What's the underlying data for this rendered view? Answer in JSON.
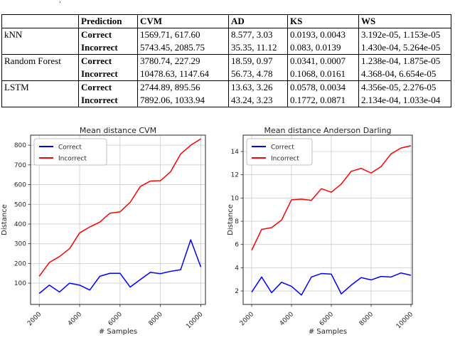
{
  "stray_mark": ",",
  "chart_data": [
    {
      "type": "table",
      "headers": [
        "",
        "Prediction",
        "CVM",
        "AD",
        "KS",
        "WS"
      ],
      "groups": [
        {
          "model": "kNN",
          "rows": [
            {
              "prediction": "Correct",
              "cvm": "1569.71, 617.60",
              "ad": "8.577, 3.03",
              "ks": "0.0193, 0.0043",
              "ws": "3.192e-05, 1.153e-05"
            },
            {
              "prediction": "Incorrect",
              "cvm": "5743.45, 2085.75",
              "ad": "35.35, 11.12",
              "ks": "0.083, 0.0139",
              "ws": "1.430e-04, 5.264e-05"
            }
          ]
        },
        {
          "model": "Random Forest",
          "rows": [
            {
              "prediction": "Correct",
              "cvm": "3780.74, 227.29",
              "ad": "18.59, 0.97",
              "ks": "0.0341, 0.0007",
              "ws": "1.238e-04, 1.875e-05"
            },
            {
              "prediction": "Incorrect",
              "cvm": "10478.63, 1147.64",
              "ad": "56.73, 4.78",
              "ks": "0.1068, 0.0161",
              "ws": "4.368-04, 6.654e-05"
            }
          ]
        },
        {
          "model": "LSTM",
          "rows": [
            {
              "prediction": "Correct",
              "cvm": "2744.89, 895.56",
              "ad": "13.63, 3.26",
              "ks": "0.0578, 0.0034",
              "ws": "4.356e-05, 2.276-05"
            },
            {
              "prediction": "Incorrect",
              "cvm": "7892.06, 1033.94",
              "ad": "43.24, 3.23",
              "ks": "0.1772, 0.0871",
              "ws": "2.134e-04, 1.033e-04"
            }
          ]
        }
      ]
    },
    {
      "type": "line",
      "title": "Mean distance CVM",
      "xlabel": "# Samples",
      "ylabel": "Distance",
      "x": [
        2000,
        2500,
        3000,
        3500,
        4000,
        4500,
        5000,
        5500,
        6000,
        6500,
        7000,
        7500,
        8000,
        8500,
        9000,
        9500,
        10000
      ],
      "series": [
        {
          "name": "Correct",
          "color": "#0000ff",
          "values": [
            48,
            90,
            55,
            100,
            90,
            65,
            135,
            150,
            150,
            80,
            118,
            155,
            148,
            160,
            168,
            320,
            182
          ]
        },
        {
          "name": "Incorrect",
          "color": "#ff0000",
          "values": [
            135,
            205,
            235,
            275,
            355,
            385,
            410,
            455,
            462,
            510,
            590,
            618,
            620,
            665,
            755,
            800,
            832
          ]
        }
      ],
      "xticks": [
        2000,
        4000,
        6000,
        8000,
        10000
      ],
      "yticks": [
        100,
        200,
        300,
        400,
        500,
        600,
        700,
        800
      ],
      "xlim": [
        1570,
        10230
      ],
      "ylim": [
        -8,
        851
      ],
      "grid": true,
      "legend_position": "upper left"
    },
    {
      "type": "line",
      "title": "Mean distance Anderson Darling",
      "xlabel": "# Samples",
      "ylabel": "Distance",
      "x": [
        2000,
        2500,
        3000,
        3500,
        4000,
        4500,
        5000,
        5500,
        6000,
        6500,
        7000,
        7500,
        8000,
        8500,
        9000,
        9500,
        10000
      ],
      "series": [
        {
          "name": "Correct",
          "color": "#0000ff",
          "values": [
            1.9,
            3.2,
            1.85,
            2.75,
            2.4,
            1.65,
            3.2,
            3.5,
            3.45,
            1.75,
            2.5,
            3.15,
            2.95,
            3.25,
            3.2,
            3.55,
            3.35
          ]
        },
        {
          "name": "Incorrect",
          "color": "#ff0000",
          "values": [
            5.5,
            7.3,
            7.45,
            8.1,
            9.85,
            9.9,
            9.8,
            10.8,
            10.5,
            11.2,
            12.3,
            12.55,
            12.15,
            12.7,
            13.8,
            14.3,
            14.5
          ]
        }
      ],
      "xticks": [
        2000,
        4000,
        6000,
        8000,
        10000
      ],
      "yticks": [
        2,
        4,
        6,
        8,
        10,
        12,
        14
      ],
      "xlim": [
        1571,
        10071
      ],
      "ylim": [
        0.84,
        15.41
      ],
      "grid": true,
      "legend_position": "upper left"
    }
  ]
}
